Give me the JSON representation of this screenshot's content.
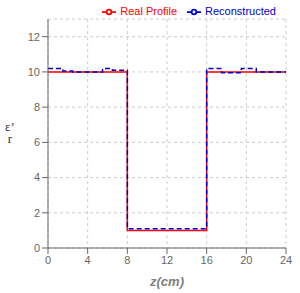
{
  "chart_data": {
    "type": "line",
    "xlabel": "z(cm)",
    "ylabel": "ε’\nr",
    "xlim": [
      0,
      24
    ],
    "ylim": [
      0,
      13
    ],
    "xticks": [
      0,
      4,
      8,
      12,
      16,
      20,
      24
    ],
    "yticks": [
      0,
      2,
      4,
      6,
      8,
      10,
      12
    ],
    "grid": true,
    "legend": "upper right",
    "series": [
      {
        "name": "Real Profile",
        "color": "#ff0000",
        "line_style": "solid",
        "x": [
          0,
          8,
          8,
          16,
          16,
          24
        ],
        "values": [
          10,
          10,
          1,
          1,
          10,
          10
        ]
      },
      {
        "name": "Reconstructed",
        "color": "#0000cc",
        "line_style": "dashed",
        "x": [
          0,
          1.5,
          1.5,
          2.5,
          2.5,
          5.5,
          5.5,
          6.5,
          6.5,
          8.0,
          8.0,
          16.0,
          16.0,
          17.5,
          17.5,
          19.5,
          19.5,
          21.0,
          21.0,
          24.0
        ],
        "values": [
          10.2,
          10.2,
          10.05,
          10.05,
          10.0,
          10.0,
          10.2,
          10.2,
          10.1,
          10.1,
          1.1,
          1.1,
          10.2,
          10.2,
          9.95,
          9.95,
          10.2,
          10.2,
          10.0,
          10.0
        ]
      }
    ]
  }
}
